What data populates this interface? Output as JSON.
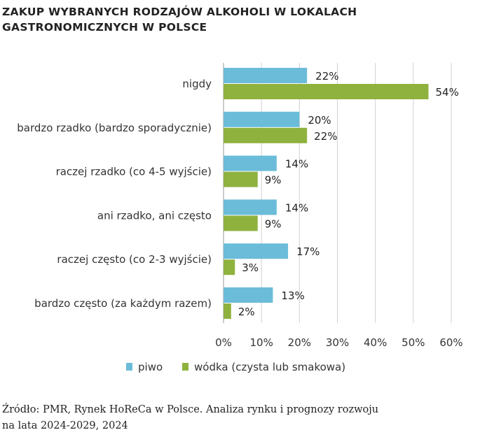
{
  "title_line1": "ZAKUP WYBRANYCH RODZAJÓW ALKOHOLI W LOKALACH",
  "title_line2": "GASTRONOMICZNYCH W POLSCE",
  "source_line1": "Źródło: PMR, Rynek HoReCa w Polsce. Analiza rynku i prognozy rozwoju",
  "source_line2": "na lata 2024-2029, 2024",
  "colors": {
    "piwo": "#6bbcd9",
    "wodka": "#8fb23f",
    "grid": "#d0d0d0"
  },
  "chart_data": {
    "type": "bar",
    "orientation": "horizontal",
    "title": "ZAKUP WYBRANYCH RODZAJÓW ALKOHOLI W LOKALACH GASTRONOMICZNYCH W POLSCE",
    "categories": [
      "nigdy",
      "bardzo rzadko (bardzo sporadycznie)",
      "raczej rzadko (co 4-5 wyjście)",
      "ani rzadko, ani często",
      "raczej często (co 2-3 wyjście)",
      "bardzo często (za każdym razem)"
    ],
    "series": [
      {
        "name": "piwo",
        "values": [
          22,
          20,
          14,
          14,
          17,
          13
        ]
      },
      {
        "name": "wódka (czysta lub smakowa)",
        "values": [
          54,
          22,
          9,
          9,
          3,
          2
        ]
      }
    ],
    "xlim": [
      0,
      60
    ],
    "xticks": [
      "0%",
      "10%",
      "20%",
      "30%",
      "40%",
      "50%",
      "60%"
    ],
    "grid": true,
    "legend": "bottom"
  }
}
